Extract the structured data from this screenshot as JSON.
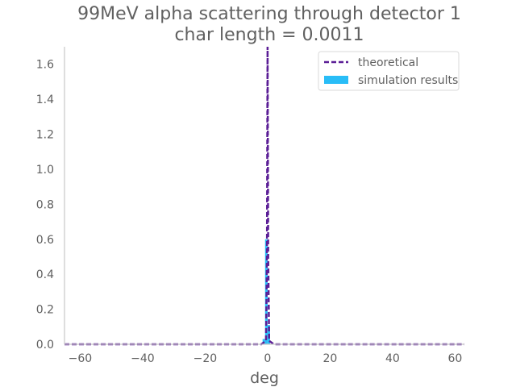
{
  "chart_data": {
    "type": "histogram",
    "title_line1": "99MeV alpha scattering through detector 1",
    "title_line2": "char length = 0.0011",
    "xlabel": "deg",
    "ylabel": "",
    "xlim": [
      -65,
      63
    ],
    "ylim": [
      0,
      1.7
    ],
    "x_ticks": [
      -60,
      -40,
      -20,
      0,
      20,
      40,
      60
    ],
    "x_tick_labels": [
      "−60",
      "−40",
      "−20",
      "0",
      "20",
      "40",
      "60"
    ],
    "y_ticks": [
      0.0,
      0.2,
      0.4,
      0.6,
      0.8,
      1.0,
      1.2,
      1.4,
      1.6
    ],
    "y_tick_labels": [
      "0.0",
      "0.2",
      "0.4",
      "0.6",
      "0.8",
      "1.0",
      "1.2",
      "1.4",
      "1.6"
    ],
    "grid": false,
    "legend_position": "top-right",
    "series": [
      {
        "name": "theoretical",
        "kind": "line",
        "style": "dashed",
        "color": "#5b1e96",
        "x": [
          -65,
          -2,
          -0.5,
          -0.2,
          0,
          0.2,
          0.5,
          2,
          63
        ],
        "y": [
          0,
          0,
          0.02,
          0.5,
          1.7,
          0.5,
          0.02,
          0,
          0
        ]
      },
      {
        "name": "simulation results",
        "kind": "histogram",
        "color": "#29bdf7",
        "bin_edges": [
          -1.6,
          -0.8,
          0.0,
          0.8,
          1.6
        ],
        "values": [
          0.03,
          0.6,
          0.11,
          0.0
        ]
      }
    ]
  }
}
